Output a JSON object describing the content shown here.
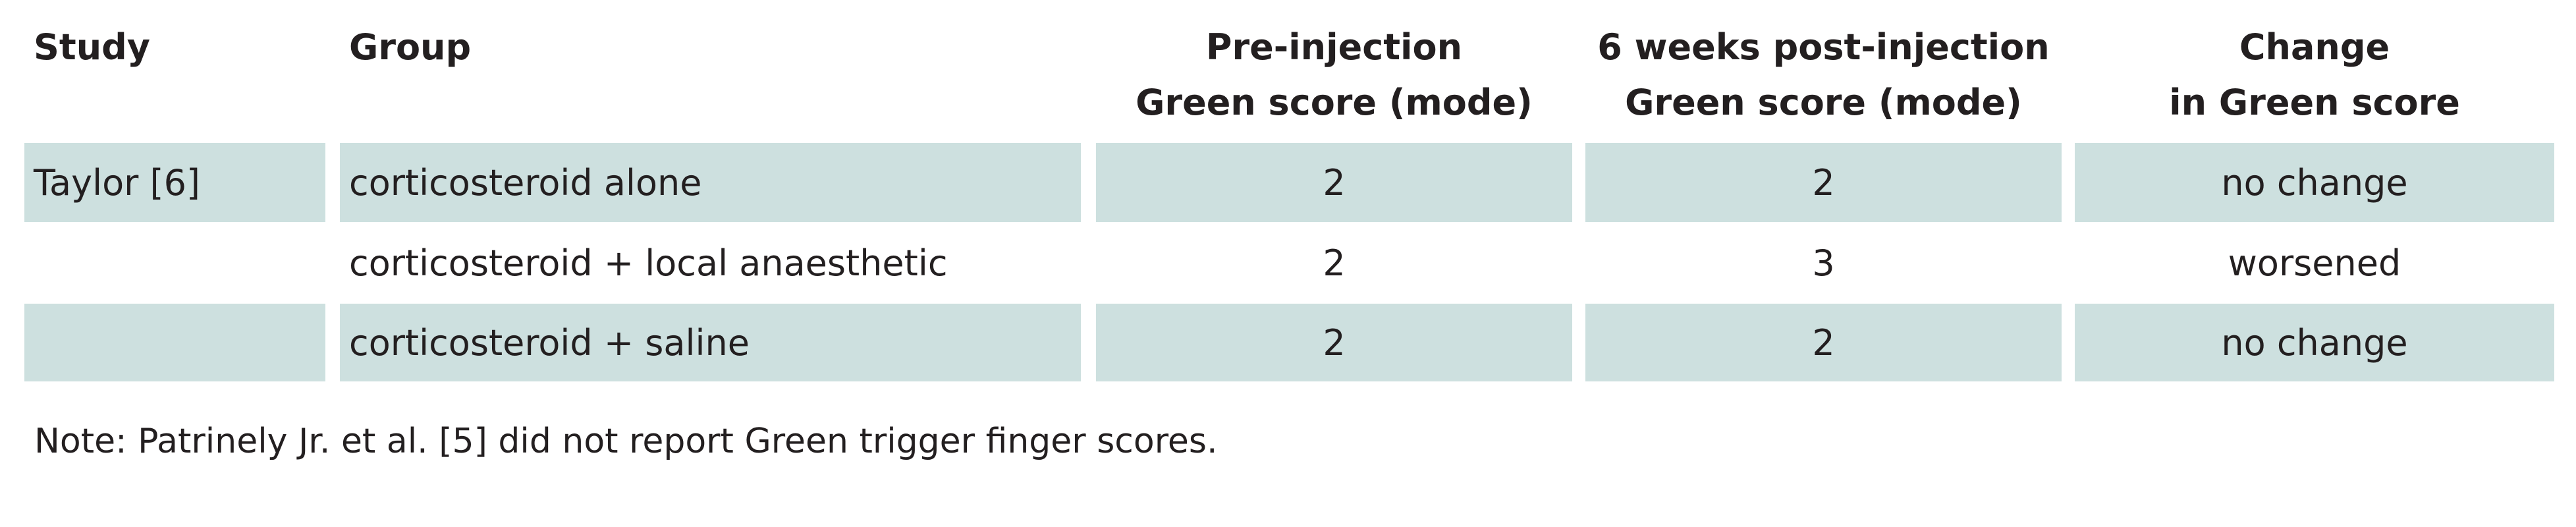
{
  "table": {
    "header": [
      [
        "Study"
      ],
      [
        "Group"
      ],
      [
        "Pre-injection",
        "Green score (mode)"
      ],
      [
        "6 weeks post-injection",
        "Green score (mode)"
      ],
      [
        "Change",
        "in Green score"
      ]
    ],
    "rows": [
      [
        "Taylor [6]",
        "corticosteroid alone",
        2,
        2,
        "no change"
      ],
      [
        null,
        "corticosteroid + local anaesthetic",
        2,
        3,
        "worsened"
      ],
      [
        null,
        "corticosteroid + saline",
        2,
        2,
        "no change"
      ]
    ],
    "note": "Note: Patrinely Jr. et al. [5] did not report Green trigger finger scores."
  }
}
